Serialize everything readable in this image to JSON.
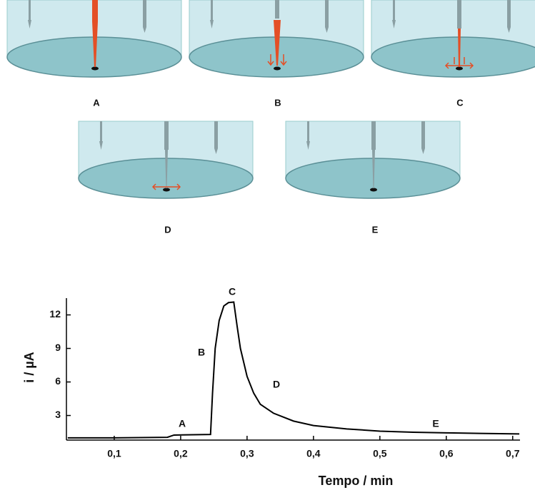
{
  "diagram": {
    "panel_labels": [
      "A",
      "B",
      "C",
      "D",
      "E"
    ]
  },
  "chart_data": {
    "type": "line",
    "xlabel": "Tempo / min",
    "ylabel": "i / µA",
    "x": [
      0.03,
      0.1,
      0.18,
      0.19,
      0.245,
      0.248,
      0.252,
      0.258,
      0.265,
      0.272,
      0.28,
      0.285,
      0.29,
      0.3,
      0.31,
      0.32,
      0.34,
      0.37,
      0.4,
      0.45,
      0.5,
      0.55,
      0.6,
      0.65,
      0.71
    ],
    "series": [
      {
        "color": "#000000",
        "values": [
          1.0,
          1.0,
          1.05,
          1.25,
          1.3,
          5,
          9,
          11.5,
          12.8,
          13.1,
          13.15,
          11,
          9,
          6.5,
          5,
          4,
          3.2,
          2.5,
          2.1,
          1.8,
          1.6,
          1.5,
          1.45,
          1.4,
          1.35
        ]
      }
    ],
    "xlim": [
      0.028,
      0.711
    ],
    "ylim": [
      0.8,
      13.5
    ],
    "xticks": [
      {
        "value": 0.1,
        "label": "0,1"
      },
      {
        "value": 0.2,
        "label": "0,2"
      },
      {
        "value": 0.3,
        "label": "0,3"
      },
      {
        "value": 0.4,
        "label": "0,4"
      },
      {
        "value": 0.5,
        "label": "0,5"
      },
      {
        "value": 0.6,
        "label": "0,6"
      },
      {
        "value": 0.7,
        "label": "0,7"
      }
    ],
    "yticks": [
      3,
      6,
      9,
      12
    ],
    "annotations": [
      "A",
      "B",
      "C",
      "D",
      "E"
    ]
  }
}
